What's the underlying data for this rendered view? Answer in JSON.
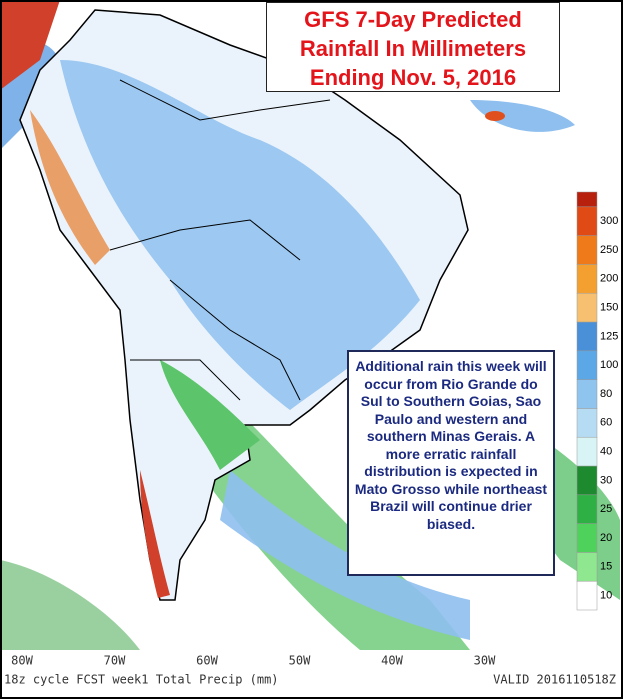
{
  "title": [
    "GFS 7-Day Predicted",
    "Rainfall In Millimeters",
    "Ending Nov. 5, 2016"
  ],
  "annotation": "Additional rain this week will occur from Rio Grande do Sul to Southern Goias, Sao Paulo and western and southern Minas Gerais. A more erratic rainfall distribution is expected in Mato Grosso while northeast Brazil will continue drier biased.",
  "legend": {
    "labels": [
      10,
      15,
      20,
      25,
      30,
      40,
      60,
      80,
      100,
      125,
      150,
      200,
      250,
      300
    ]
  },
  "longitudes": [
    "80W",
    "70W",
    "60W",
    "50W",
    "40W",
    "30W"
  ],
  "footer": {
    "left": "18z cycle FCST week1 Total Precip (mm)",
    "right": "VALID 2016110518Z"
  }
}
